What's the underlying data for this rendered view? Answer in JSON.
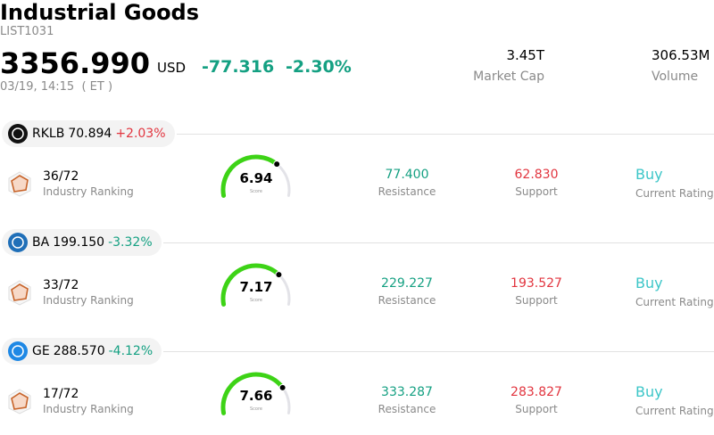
{
  "header": {
    "title": "Industrial Goods",
    "code": "LIST1031",
    "price": "3356.990",
    "currency": "USD",
    "change": "-77.316",
    "change_pct": "-2.30%",
    "time": "03/19, 14:15",
    "timezone": "( ET )",
    "stats": [
      {
        "value": "3.45T",
        "label": "Market Cap"
      },
      {
        "value": "306.53M",
        "label": "Volume"
      }
    ]
  },
  "stocks": [
    {
      "symbol": "RKLB",
      "price": "70.894",
      "change_pct": "+2.03%",
      "ranking": "36/72",
      "ranking_label": "Industry Ranking",
      "score": 6.94,
      "score_label": "Score",
      "resistance": "77.400",
      "resistance_label": "Resistance",
      "support": "62.830",
      "support_label": "Support",
      "rating": "Buy",
      "rating_label": "Current Rating"
    },
    {
      "symbol": "BA",
      "price": "199.150",
      "change_pct": "-3.32%",
      "ranking": "33/72",
      "ranking_label": "Industry Ranking",
      "score": 7.17,
      "score_label": "Score",
      "resistance": "229.227",
      "resistance_label": "Resistance",
      "support": "193.527",
      "support_label": "Support",
      "rating": "Buy",
      "rating_label": "Current Rating"
    },
    {
      "symbol": "GE",
      "price": "288.570",
      "change_pct": "-4.12%",
      "ranking": "17/72",
      "ranking_label": "Industry Ranking",
      "score": 7.66,
      "score_label": "Score",
      "resistance": "333.287",
      "resistance_label": "Resistance",
      "support": "283.827",
      "support_label": "Support",
      "rating": "Buy",
      "rating_label": "Current Rating"
    }
  ]
}
